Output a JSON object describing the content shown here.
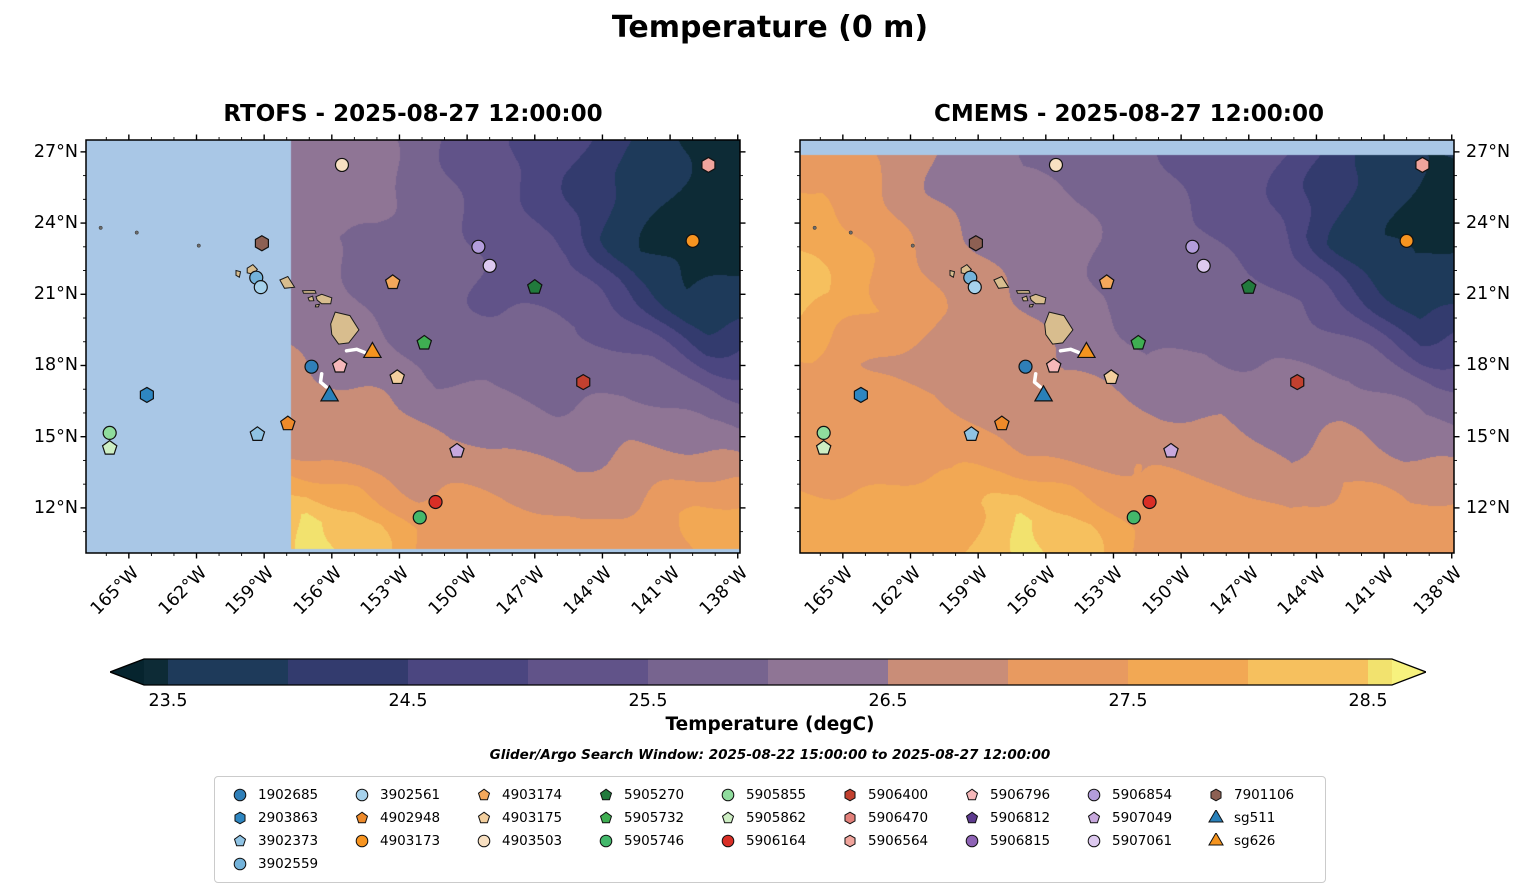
{
  "figure": {
    "title": "Temperature (0 m)",
    "subtitle": "Glider/Argo Search Window: 2025-08-22 15:00:00 to 2025-08-27 12:00:00"
  },
  "chart_data": {
    "type": "heatmap",
    "subtype": "geographic-contourf-comparison",
    "panels": [
      {
        "id": "rtofs",
        "title": "RTOFS - 2025-08-27 12:00:00",
        "masks": {
          "west_of": -157.8,
          "south_of": 10.28,
          "color": "#a9c7e6"
        },
        "grid": {
          "lons": [
            -166.5,
            -163.5,
            -160.5,
            -157.5,
            -154.5,
            -151.5,
            -148.5,
            -145.5,
            -142.5,
            -139.5
          ],
          "lats": [
            26.5,
            23.5,
            20.5,
            17.5,
            14.5,
            11.5
          ],
          "temps": [
            [
              26.2,
              26.2,
              26.1,
              26.1,
              26.3,
              25.6,
              25.2,
              24.6,
              23.8,
              23.3
            ],
            [
              26.5,
              26.4,
              26.3,
              26.2,
              25.9,
              25.6,
              25.3,
              24.8,
              23.6,
              23.2
            ],
            [
              26.8,
              26.7,
              26.5,
              26.3,
              26.0,
              25.6,
              25.5,
              25.3,
              24.5,
              23.7
            ],
            [
              27.0,
              26.9,
              26.8,
              26.6,
              26.3,
              25.9,
              26.0,
              25.8,
              25.7,
              25.3
            ],
            [
              27.3,
              27.2,
              27.1,
              27.0,
              26.8,
              26.5,
              26.5,
              26.4,
              26.5,
              26.3
            ],
            [
              27.7,
              27.7,
              27.8,
              28.6,
              28.3,
              27.3,
              27.1,
              27.0,
              27.3,
              27.6
            ]
          ]
        }
      },
      {
        "id": "cmems",
        "title": "CMEMS - 2025-08-27 12:00:00",
        "masks": {
          "north_of": 26.87,
          "color": "#a9c7e6"
        },
        "grid": {
          "lons": [
            -166.5,
            -163.5,
            -160.5,
            -157.5,
            -154.5,
            -151.5,
            -148.5,
            -145.5,
            -142.5,
            -139.5
          ],
          "lats": [
            26.5,
            23.5,
            20.5,
            17.5,
            14.5,
            11.5
          ],
          "temps": [
            [
              27.4,
              27.1,
              26.4,
              26.0,
              25.9,
              25.6,
              25.3,
              25.0,
              24.0,
              23.5
            ],
            [
              27.8,
              27.3,
              26.6,
              26.3,
              26.1,
              25.7,
              25.4,
              25.1,
              23.9,
              23.3
            ],
            [
              28.3,
              27.5,
              26.9,
              26.5,
              26.2,
              25.8,
              25.7,
              25.5,
              24.8,
              24.0
            ],
            [
              27.3,
              27.0,
              26.9,
              26.7,
              26.4,
              26.1,
              26.3,
              26.1,
              25.9,
              25.5
            ],
            [
              27.3,
              27.1,
              27.3,
              27.1,
              26.9,
              26.7,
              26.7,
              26.5,
              26.7,
              26.3
            ],
            [
              27.7,
              27.9,
              27.7,
              28.6,
              28.2,
              27.4,
              27.2,
              27.1,
              27.5,
              27.1
            ]
          ]
        }
      }
    ],
    "axes": {
      "lon_range": [
        -166.9,
        -137.9
      ],
      "lat_range": [
        10.1,
        27.5
      ],
      "lon_ticks": [
        -165,
        -162,
        -159,
        -156,
        -153,
        -150,
        -147,
        -144,
        -141,
        -138
      ],
      "lon_tick_labels": [
        "165°W",
        "162°W",
        "159°W",
        "156°W",
        "153°W",
        "150°W",
        "147°W",
        "144°W",
        "141°W",
        "138°W"
      ],
      "lat_ticks": [
        12,
        15,
        18,
        21,
        24,
        27
      ],
      "lat_tick_labels": [
        "12°N",
        "15°N",
        "18°N",
        "21°N",
        "24°N",
        "27°N"
      ]
    },
    "colorbar": {
      "label": "Temperature (degC)",
      "range": [
        23.4,
        28.6
      ],
      "boundaries_start": 23.0,
      "step": 0.5,
      "colors": [
        "#0d2b36",
        "#1e3a5a",
        "#333b6e",
        "#4b4680",
        "#615389",
        "#77648f",
        "#8f7595",
        "#c98d78",
        "#e89a60",
        "#f2a854",
        "#f6c05e",
        "#f2e26e"
      ],
      "under_color": "#06242e",
      "over_color": "#f7f27e",
      "ticks": [
        "23.5",
        "24.5",
        "25.5",
        "26.5",
        "27.5",
        "28.5"
      ],
      "tick_values": [
        23.5,
        24.5,
        25.5,
        26.5,
        27.5,
        28.5
      ]
    },
    "platforms": [
      {
        "id": "1902685",
        "shape": "circle",
        "color": "#2f7fb8"
      },
      {
        "id": "2903863",
        "shape": "hexagon",
        "color": "#2e86c1"
      },
      {
        "id": "3902373",
        "shape": "pentagon",
        "color": "#8fc3e4"
      },
      {
        "id": "3902559",
        "shape": "circle",
        "color": "#74b3da"
      },
      {
        "id": "3902561",
        "shape": "circle",
        "color": "#a6d2ec"
      },
      {
        "id": "4902948",
        "shape": "pentagon",
        "color": "#ee8a2a"
      },
      {
        "id": "4903173",
        "shape": "circle",
        "color": "#f79420"
      },
      {
        "id": "4903174",
        "shape": "pentagon",
        "color": "#f4a85b"
      },
      {
        "id": "4903175",
        "shape": "pentagon",
        "color": "#f3cf9e"
      },
      {
        "id": "4903503",
        "shape": "circle",
        "color": "#f8e0c2"
      },
      {
        "id": "5905270",
        "shape": "pentagon",
        "color": "#217a3c"
      },
      {
        "id": "5905732",
        "shape": "pentagon",
        "color": "#3fae52"
      },
      {
        "id": "5905746",
        "shape": "circle",
        "color": "#43b86b"
      },
      {
        "id": "5905855",
        "shape": "circle",
        "color": "#8fdc9d"
      },
      {
        "id": "5905862",
        "shape": "pentagon",
        "color": "#cdeec3"
      },
      {
        "id": "5906164",
        "shape": "circle",
        "color": "#d92f26"
      },
      {
        "id": "5906400",
        "shape": "hexagon",
        "color": "#c2402f"
      },
      {
        "id": "5906470",
        "shape": "hexagon",
        "color": "#e2807a"
      },
      {
        "id": "5906564",
        "shape": "hexagon",
        "color": "#f0a49c"
      },
      {
        "id": "5906796",
        "shape": "pentagon",
        "color": "#f6b8ba"
      },
      {
        "id": "5906812",
        "shape": "pentagon",
        "color": "#5d3a8e"
      },
      {
        "id": "5906815",
        "shape": "circle",
        "color": "#8e63b5"
      },
      {
        "id": "5906854",
        "shape": "circle",
        "color": "#b39ddb"
      },
      {
        "id": "5907049",
        "shape": "pentagon",
        "color": "#c7a8dd"
      },
      {
        "id": "5907061",
        "shape": "circle",
        "color": "#ddc9ef"
      },
      {
        "id": "7901106",
        "shape": "hexagon",
        "color": "#8d6053"
      },
      {
        "id": "sg511",
        "shape": "triangle",
        "color": "#2980b9"
      },
      {
        "id": "sg626",
        "shape": "triangle",
        "color": "#f5941f"
      }
    ],
    "map_markers": [
      {
        "id": "4903503",
        "lon": -155.55,
        "lat": 26.45
      },
      {
        "id": "5906564",
        "lon": -139.3,
        "lat": 26.45
      },
      {
        "id": "7901106",
        "lon": -159.1,
        "lat": 23.15
      },
      {
        "id": "4903173",
        "lon": -140.0,
        "lat": 23.25
      },
      {
        "id": "5906854",
        "lon": -149.5,
        "lat": 23.0
      },
      {
        "id": "5907061",
        "lon": -149.0,
        "lat": 22.2
      },
      {
        "id": "3902559",
        "lon": -159.35,
        "lat": 21.7
      },
      {
        "id": "3902561",
        "lon": -159.15,
        "lat": 21.3
      },
      {
        "id": "4903174",
        "lon": -153.3,
        "lat": 21.5
      },
      {
        "id": "5905270",
        "lon": -147.0,
        "lat": 21.3
      },
      {
        "id": "5905732",
        "lon": -151.9,
        "lat": 18.95
      },
      {
        "id": "sg626",
        "lon": -154.2,
        "lat": 18.55
      },
      {
        "id": "1902685",
        "lon": -156.9,
        "lat": 17.95
      },
      {
        "id": "5906796",
        "lon": -155.65,
        "lat": 17.98
      },
      {
        "id": "4903175",
        "lon": -153.1,
        "lat": 17.5
      },
      {
        "id": "sg511",
        "lon": -156.1,
        "lat": 16.72
      },
      {
        "id": "5906400",
        "lon": -144.85,
        "lat": 17.3
      },
      {
        "id": "2903863",
        "lon": -164.2,
        "lat": 16.76
      },
      {
        "id": "5905855",
        "lon": -165.85,
        "lat": 15.16
      },
      {
        "id": "5905862",
        "lon": -165.85,
        "lat": 14.52
      },
      {
        "id": "3902373",
        "lon": -159.3,
        "lat": 15.1
      },
      {
        "id": "4902948",
        "lon": -157.95,
        "lat": 15.55
      },
      {
        "id": "5907049",
        "lon": -150.45,
        "lat": 14.4
      },
      {
        "id": "5906164",
        "lon": -151.4,
        "lat": 12.25
      },
      {
        "id": "5905746",
        "lon": -152.1,
        "lat": 11.6
      }
    ],
    "glider_tracks": [
      {
        "glider": "sg626",
        "color": "#ffffff",
        "points": [
          [
            -155.35,
            18.62
          ],
          [
            -154.9,
            18.68
          ],
          [
            -154.55,
            18.55
          ]
        ]
      },
      {
        "glider": "sg511",
        "color": "#ffffff",
        "points": [
          [
            -156.45,
            17.65
          ],
          [
            -156.5,
            17.3
          ],
          [
            -156.25,
            17.1
          ]
        ]
      }
    ],
    "islands": [
      {
        "name": "hawaii",
        "poly": [
          [
            -156.05,
            19.75
          ],
          [
            -155.85,
            20.25
          ],
          [
            -155.2,
            20.1
          ],
          [
            -154.8,
            19.5
          ],
          [
            -155.25,
            18.95
          ],
          [
            -155.7,
            18.9
          ],
          [
            -156.0,
            19.3
          ]
        ]
      },
      {
        "name": "maui",
        "poly": [
          [
            -156.7,
            20.9
          ],
          [
            -156.45,
            21.0
          ],
          [
            -156.0,
            20.85
          ],
          [
            -156.05,
            20.6
          ],
          [
            -156.45,
            20.6
          ],
          [
            -156.65,
            20.75
          ]
        ]
      },
      {
        "name": "kahoolawe",
        "poly": [
          [
            -156.72,
            20.55
          ],
          [
            -156.55,
            20.58
          ],
          [
            -156.6,
            20.47
          ],
          [
            -156.73,
            20.47
          ]
        ]
      },
      {
        "name": "lanai",
        "poly": [
          [
            -157.05,
            20.85
          ],
          [
            -156.85,
            20.92
          ],
          [
            -156.8,
            20.73
          ],
          [
            -157.0,
            20.72
          ]
        ]
      },
      {
        "name": "molokai",
        "poly": [
          [
            -157.3,
            21.15
          ],
          [
            -156.75,
            21.16
          ],
          [
            -156.7,
            21.05
          ],
          [
            -157.25,
            21.04
          ]
        ]
      },
      {
        "name": "oahu",
        "poly": [
          [
            -158.3,
            21.6
          ],
          [
            -157.95,
            21.75
          ],
          [
            -157.65,
            21.3
          ],
          [
            -158.1,
            21.25
          ]
        ]
      },
      {
        "name": "kauai",
        "poly": [
          [
            -159.75,
            22.1
          ],
          [
            -159.5,
            22.25
          ],
          [
            -159.3,
            22.05
          ],
          [
            -159.5,
            21.85
          ],
          [
            -159.75,
            21.9
          ]
        ]
      },
      {
        "name": "niihau",
        "poly": [
          [
            -160.25,
            22.0
          ],
          [
            -160.05,
            21.95
          ],
          [
            -160.1,
            21.72
          ],
          [
            -160.25,
            21.8
          ]
        ]
      },
      {
        "name": "nihoa",
        "dot": [
          -161.9,
          23.05
        ]
      },
      {
        "name": "necker",
        "dot": [
          -164.65,
          23.6
        ]
      },
      {
        "name": "nw-islet",
        "dot": [
          -166.25,
          23.8
        ]
      }
    ]
  }
}
